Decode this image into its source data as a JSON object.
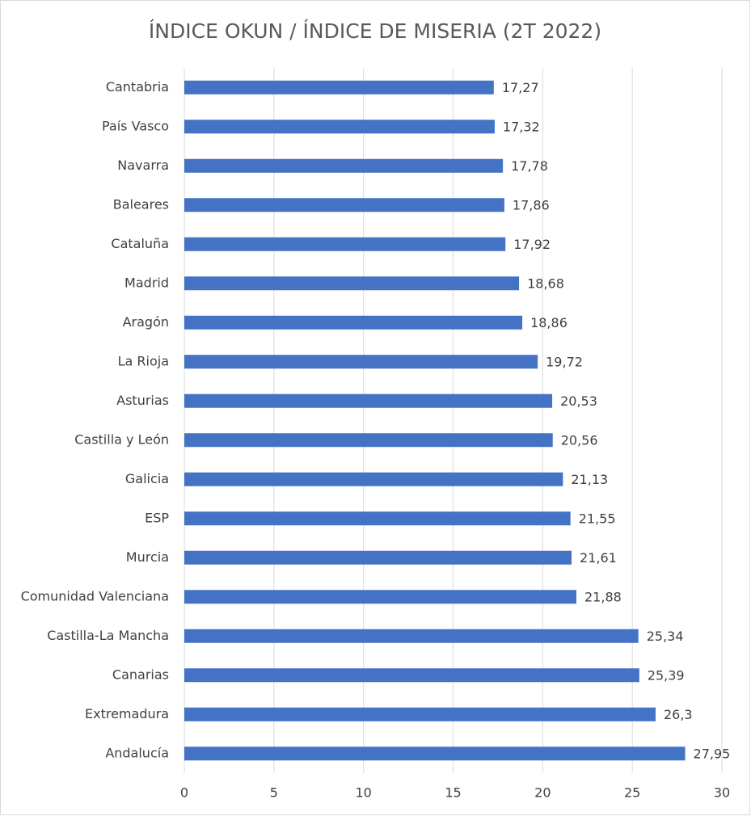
{
  "chart_data": {
    "type": "hbar",
    "title": "ÍNDICE OKUN / ÍNDICE DE MISERIA (2T 2022)",
    "categories": [
      "Cantabria",
      "País Vasco",
      "Navarra",
      "Baleares",
      "Cataluña",
      "Madrid",
      "Aragón",
      "La Rioja",
      "Asturias",
      "Castilla y León",
      "Galicia",
      "ESP",
      "Murcia",
      "Comunidad Valenciana",
      "Castilla-La Mancha",
      "Canarias",
      "Extremadura",
      "Andalucía"
    ],
    "values": [
      17.27,
      17.32,
      17.78,
      17.86,
      17.92,
      18.68,
      18.86,
      19.72,
      20.53,
      20.56,
      21.13,
      21.55,
      21.61,
      21.88,
      25.34,
      25.39,
      26.3,
      27.95
    ],
    "value_labels": [
      "17,27",
      "17,32",
      "17,78",
      "17,86",
      "17,92",
      "18,68",
      "18,86",
      "19,72",
      "20,53",
      "20,56",
      "21,13",
      "21,55",
      "21,61",
      "21,88",
      "25,34",
      "25,39",
      "26,3",
      "27,95"
    ],
    "color": "#4472c4",
    "xlim": [
      0,
      30
    ],
    "xticks": [
      0,
      5,
      10,
      15,
      20,
      25,
      30
    ],
    "grid": true
  }
}
